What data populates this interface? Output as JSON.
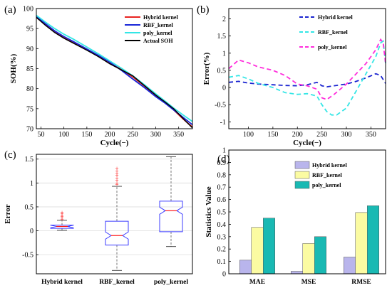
{
  "chart_data": [
    {
      "panel": "(a)",
      "type": "line",
      "xlabel": "Cycle(−)",
      "ylabel": "SOH(%)",
      "xlim": [
        40,
        380
      ],
      "ylim": [
        70,
        100
      ],
      "xticks": [
        "50",
        "100",
        "150",
        "200",
        "250",
        "300",
        "350"
      ],
      "yticks": [
        "70",
        "75",
        "80",
        "85",
        "90",
        "95",
        "100"
      ],
      "grid": false,
      "legend": "top-right",
      "series": [
        {
          "name": "Hybrid kernel",
          "color": "#e8231f",
          "x": [
            40,
            60,
            80,
            100,
            120,
            150,
            175,
            200,
            225,
            250,
            275,
            300,
            320,
            340,
            360,
            380
          ],
          "y": [
            97.8,
            96.0,
            94.2,
            92.8,
            91.6,
            89.7,
            88.2,
            86.4,
            84.8,
            82.9,
            80.7,
            78.3,
            76.6,
            74.6,
            72.4,
            70.4
          ]
        },
        {
          "name": "RBF_kernel",
          "color": "#1826d8",
          "x": [
            40,
            60,
            80,
            100,
            120,
            150,
            175,
            200,
            225,
            250,
            275,
            300,
            320,
            340,
            360,
            380
          ],
          "y": [
            98.0,
            96.2,
            94.4,
            93.0,
            91.8,
            89.9,
            88.3,
            86.6,
            84.6,
            82.4,
            80.3,
            78.0,
            76.4,
            74.6,
            72.8,
            71.0
          ]
        },
        {
          "name": "poly_kernel",
          "color": "#33e6e6",
          "x": [
            40,
            60,
            80,
            100,
            120,
            150,
            175,
            200,
            225,
            250,
            275,
            300,
            320,
            340,
            360,
            380
          ],
          "y": [
            98.3,
            96.6,
            95.0,
            93.6,
            92.4,
            90.4,
            88.7,
            86.9,
            85.1,
            83.2,
            81.0,
            78.7,
            76.9,
            75.1,
            73.4,
            71.8
          ]
        },
        {
          "name": "Actual SOH",
          "color": "#000000",
          "x": [
            40,
            60,
            80,
            100,
            120,
            150,
            175,
            200,
            225,
            250,
            275,
            300,
            320,
            340,
            360,
            380
          ],
          "y": [
            97.8,
            95.8,
            94.0,
            92.6,
            91.4,
            89.6,
            88.0,
            86.2,
            84.7,
            83.2,
            80.8,
            78.4,
            76.7,
            74.9,
            72.5,
            70.2
          ]
        }
      ]
    },
    {
      "panel": "(b)",
      "type": "line",
      "xlabel": "Cycle(−)",
      "ylabel": "Error(%)",
      "xlim": [
        60,
        380
      ],
      "ylim": [
        -1.2,
        2.3
      ],
      "xticks": [
        "100",
        "150",
        "200",
        "250",
        "300",
        "350"
      ],
      "yticks": [
        "-1",
        "-0.5",
        "0",
        "0.5",
        "1",
        "1.5",
        "2"
      ],
      "grid": false,
      "legend": "top-right",
      "series": [
        {
          "name": "Hybrid kernel",
          "color": "#1a24d0",
          "dashed": true,
          "x": [
            60,
            80,
            100,
            120,
            150,
            175,
            200,
            220,
            240,
            250,
            260,
            275,
            300,
            320,
            340,
            360,
            370,
            380
          ],
          "y": [
            0.15,
            0.18,
            0.13,
            0.1,
            0.08,
            0.06,
            0.05,
            0.08,
            0.15,
            0.05,
            0.02,
            0.05,
            0.1,
            0.18,
            0.28,
            0.4,
            0.35,
            0.12
          ]
        },
        {
          "name": "RBF_kernel",
          "color": "#33e6e6",
          "dashed": true,
          "x": [
            60,
            80,
            100,
            120,
            150,
            175,
            200,
            220,
            240,
            250,
            260,
            270,
            280,
            300,
            320,
            340,
            360,
            370,
            375,
            380
          ],
          "y": [
            0.3,
            0.35,
            0.25,
            0.12,
            0.0,
            -0.15,
            -0.2,
            -0.18,
            -0.25,
            -0.5,
            -0.7,
            -0.8,
            -0.8,
            -0.6,
            -0.1,
            0.4,
            0.9,
            1.3,
            1.35,
            0.7
          ]
        },
        {
          "name": "poly_kernel",
          "color": "#ff2ddc",
          "dashed": true,
          "x": [
            60,
            80,
            100,
            120,
            150,
            175,
            200,
            220,
            240,
            250,
            260,
            275,
            300,
            320,
            340,
            360,
            370,
            375,
            380
          ],
          "y": [
            0.55,
            0.8,
            0.72,
            0.6,
            0.5,
            0.35,
            0.1,
            0.05,
            -0.05,
            -0.3,
            -0.35,
            -0.2,
            0.1,
            0.4,
            0.7,
            1.1,
            1.4,
            1.3,
            0.7
          ]
        }
      ]
    },
    {
      "panel": "(c)",
      "type": "boxplot",
      "xlabel": "",
      "ylabel": "Error",
      "ylim": [
        -0.9,
        1.6
      ],
      "yticks": [
        "-0.5",
        "0",
        "0.5",
        "1",
        "1.5"
      ],
      "grid": true,
      "categories": [
        "Hybrid kernel",
        "RBF_kernel",
        "poly_kernel"
      ],
      "boxes": [
        {
          "q1": 0.05,
          "median": 0.09,
          "q3": 0.12,
          "whisker_low": 0.01,
          "whisker_high": 0.22,
          "outliers": [
            0.24,
            0.27,
            0.3,
            0.33,
            0.35,
            0.38
          ]
        },
        {
          "q1": -0.3,
          "median": -0.1,
          "q3": 0.2,
          "whisker_low": -0.83,
          "whisker_high": 0.93,
          "outliers": [
            0.97,
            1.0,
            1.05,
            1.1,
            1.15,
            1.2,
            1.25,
            1.3
          ]
        },
        {
          "q1": -0.02,
          "median": 0.42,
          "q3": 0.62,
          "whisker_low": -0.33,
          "whisker_high": 1.55,
          "outliers": []
        }
      ]
    },
    {
      "panel": "(d)",
      "type": "bar",
      "xlabel": "",
      "ylabel": "Statistics Value",
      "ylim": [
        0,
        1
      ],
      "yticks": [
        "0",
        "0.1",
        "0.2",
        "0.3",
        "0.4",
        "0.5",
        "0.6",
        "0.7",
        "0.8",
        "0.9",
        "1"
      ],
      "grid": false,
      "legend": "top-left",
      "categories": [
        "MAE",
        "MSE",
        "RMSE"
      ],
      "series": [
        {
          "name": "Hybrid kernel",
          "color": "#b9b5ec",
          "values": [
            0.11,
            0.02,
            0.135
          ]
        },
        {
          "name": "RBF_kernel",
          "color": "#fbfba2",
          "values": [
            0.375,
            0.245,
            0.495
          ]
        },
        {
          "name": "poly_kernel",
          "color": "#19b9b3",
          "values": [
            0.45,
            0.3,
            0.55
          ]
        }
      ]
    }
  ]
}
